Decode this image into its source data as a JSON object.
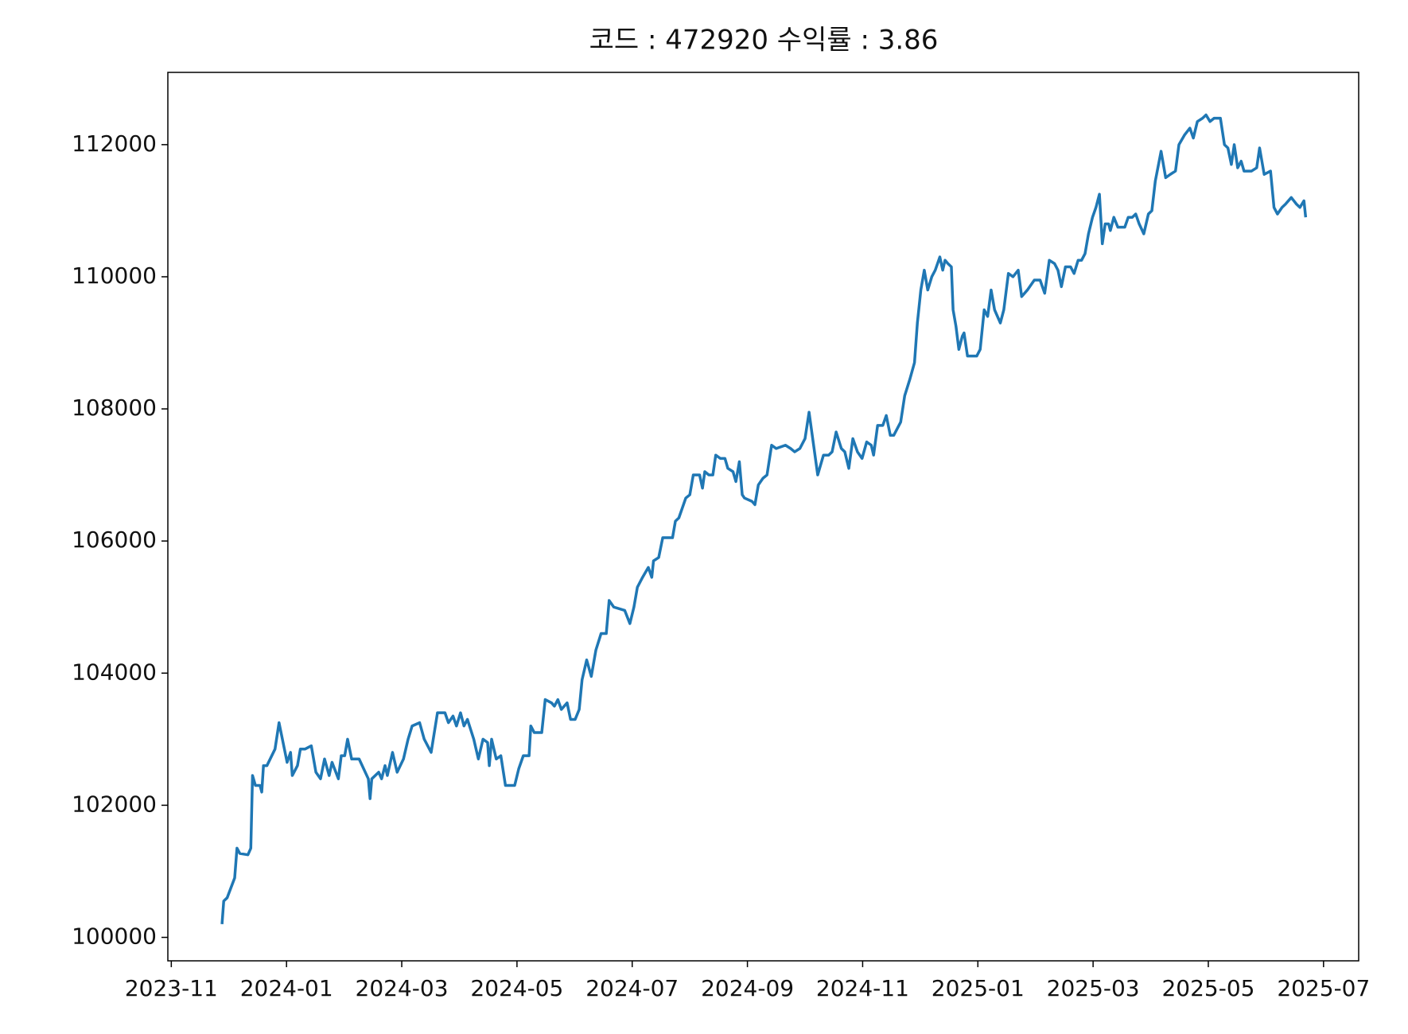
{
  "chart_data": {
    "type": "line",
    "title": "코드 : 472920 수익률 : 3.86",
    "x": [
      0.88,
      0.91,
      0.97,
      1.1,
      1.14,
      1.19,
      1.33,
      1.38,
      1.41,
      1.46,
      1.54,
      1.57,
      1.6,
      1.66,
      1.8,
      1.87,
      2.01,
      2.07,
      2.1,
      2.19,
      2.24,
      2.32,
      2.43,
      2.51,
      2.59,
      2.66,
      2.74,
      2.79,
      2.9,
      2.95,
      3.01,
      3.06,
      3.13,
      3.26,
      3.42,
      3.45,
      3.48,
      3.6,
      3.65,
      3.71,
      3.75,
      3.84,
      3.92,
      4.03,
      4.11,
      4.18,
      4.31,
      4.39,
      4.51,
      4.62,
      4.75,
      4.81,
      4.89,
      4.95,
      5.02,
      5.08,
      5.14,
      5.25,
      5.33,
      5.41,
      5.49,
      5.52,
      5.56,
      5.64,
      5.72,
      5.8,
      5.96,
      6.03,
      6.11,
      6.21,
      6.24,
      6.3,
      6.43,
      6.49,
      6.6,
      6.65,
      6.71,
      6.77,
      6.87,
      6.93,
      7.01,
      7.08,
      7.13,
      7.21,
      7.29,
      7.37,
      7.46,
      7.55,
      7.6,
      7.68,
      7.87,
      7.96,
      8.03,
      8.09,
      8.18,
      8.28,
      8.34,
      8.37,
      8.46,
      8.53,
      8.7,
      8.75,
      8.81,
      8.93,
      9.0,
      9.06,
      9.17,
      9.22,
      9.26,
      9.33,
      9.4,
      9.45,
      9.53,
      9.61,
      9.66,
      9.75,
      9.8,
      9.86,
      9.91,
      9.95,
      10.08,
      10.13,
      10.19,
      10.27,
      10.34,
      10.42,
      10.5,
      10.66,
      10.75,
      10.82,
      10.91,
      11.0,
      11.07,
      11.22,
      11.32,
      11.41,
      11.47,
      11.54,
      11.63,
      11.69,
      11.76,
      11.83,
      11.91,
      11.99,
      12.07,
      12.15,
      12.19,
      12.26,
      12.35,
      12.41,
      12.48,
      12.54,
      12.66,
      12.73,
      12.82,
      12.9,
      12.95,
      13.01,
      13.07,
      13.13,
      13.2,
      13.26,
      13.34,
      13.39,
      13.43,
      13.48,
      13.54,
      13.57,
      13.62,
      13.67,
      13.73,
      13.76,
      13.82,
      13.89,
      13.98,
      14.04,
      14.11,
      14.17,
      14.23,
      14.29,
      14.39,
      14.45,
      14.53,
      14.61,
      14.7,
      14.76,
      14.86,
      14.98,
      15.08,
      15.16,
      15.24,
      15.33,
      15.39,
      15.45,
      15.52,
      15.61,
      15.67,
      15.74,
      15.8,
      15.86,
      15.92,
      15.99,
      16.05,
      16.11,
      16.16,
      16.21,
      16.27,
      16.3,
      16.36,
      16.43,
      16.55,
      16.61,
      16.68,
      16.74,
      16.8,
      16.88,
      16.96,
      17.02,
      17.08,
      17.18,
      17.26,
      17.34,
      17.43,
      17.49,
      17.59,
      17.68,
      17.74,
      17.81,
      17.9,
      17.96,
      18.03,
      18.1,
      18.21,
      18.28,
      18.34,
      18.4,
      18.45,
      18.51,
      18.57,
      18.62,
      18.75,
      18.84,
      18.89,
      18.97,
      19.08,
      19.14,
      19.2,
      19.28,
      19.34,
      19.44,
      19.53,
      19.59,
      19.66,
      19.69
    ],
    "series": [
      {
        "color": "#1f77b4",
        "values": [
          100200,
          100550,
          100600,
          100900,
          101350,
          101270,
          101250,
          101350,
          102450,
          102300,
          102300,
          102200,
          102600,
          102600,
          102850,
          103250,
          102650,
          102800,
          102450,
          102600,
          102850,
          102850,
          102900,
          102500,
          102400,
          102700,
          102450,
          102650,
          102400,
          102750,
          102750,
          103000,
          102700,
          102700,
          102400,
          102100,
          102400,
          102500,
          102400,
          102600,
          102450,
          102800,
          102500,
          102700,
          103000,
          103200,
          103250,
          103000,
          102800,
          103400,
          103400,
          103250,
          103350,
          103200,
          103400,
          103200,
          103300,
          103000,
          102700,
          103000,
          102950,
          102600,
          103000,
          102700,
          102750,
          102300,
          102300,
          102550,
          102750,
          102750,
          103200,
          103100,
          103100,
          103600,
          103550,
          103500,
          103600,
          103450,
          103550,
          103300,
          103300,
          103450,
          103900,
          104200,
          103950,
          104350,
          104600,
          104600,
          105100,
          105000,
          104950,
          104750,
          105000,
          105300,
          105450,
          105600,
          105450,
          105700,
          105750,
          106050,
          106050,
          106300,
          106350,
          106650,
          106700,
          107000,
          107000,
          106800,
          107050,
          107000,
          107000,
          107300,
          107250,
          107250,
          107100,
          107050,
          106900,
          107200,
          106700,
          106650,
          106600,
          106550,
          106850,
          106950,
          107000,
          107450,
          107400,
          107450,
          107400,
          107350,
          107400,
          107550,
          107950,
          107000,
          107300,
          107300,
          107350,
          107650,
          107400,
          107350,
          107100,
          107550,
          107350,
          107250,
          107500,
          107450,
          107300,
          107750,
          107750,
          107900,
          107600,
          107600,
          107800,
          108200,
          108450,
          108700,
          109300,
          109800,
          110100,
          109800,
          110000,
          110100,
          110300,
          110100,
          110250,
          110200,
          110150,
          109500,
          109250,
          108900,
          109100,
          109150,
          108800,
          108800,
          108800,
          108900,
          109500,
          109400,
          109800,
          109500,
          109300,
          109500,
          110050,
          110000,
          110100,
          109700,
          109800,
          109950,
          109950,
          109750,
          110250,
          110200,
          110100,
          109850,
          110150,
          110150,
          110050,
          110250,
          110250,
          110350,
          110650,
          110900,
          111050,
          111250,
          110500,
          110800,
          110800,
          110700,
          110900,
          110750,
          110750,
          110900,
          110900,
          110950,
          110800,
          110650,
          110950,
          111000,
          111450,
          111900,
          111500,
          111550,
          111600,
          112000,
          112150,
          112250,
          112100,
          112350,
          112400,
          112450,
          112350,
          112400,
          112400,
          112000,
          111950,
          111700,
          112000,
          111650,
          111750,
          111600,
          111600,
          111650,
          111950,
          111550,
          111600,
          111050,
          110950,
          111050,
          111100,
          111200,
          111100,
          111050,
          111150,
          110900
        ]
      }
    ],
    "xlim": [
      -0.06,
      20.61
    ],
    "xticks": [
      {
        "value": 0,
        "label": "2023-11"
      },
      {
        "value": 2,
        "label": "2024-01"
      },
      {
        "value": 4,
        "label": "2024-03"
      },
      {
        "value": 6,
        "label": "2024-05"
      },
      {
        "value": 8,
        "label": "2024-07"
      },
      {
        "value": 10,
        "label": "2024-09"
      },
      {
        "value": 12,
        "label": "2024-11"
      },
      {
        "value": 14,
        "label": "2025-01"
      },
      {
        "value": 16,
        "label": "2025-03"
      },
      {
        "value": 18,
        "label": "2025-05"
      },
      {
        "value": 20,
        "label": "2025-07"
      }
    ],
    "ylim": [
      99645,
      113094
    ],
    "yticks": [
      100000,
      102000,
      104000,
      106000,
      108000,
      110000,
      112000
    ]
  }
}
